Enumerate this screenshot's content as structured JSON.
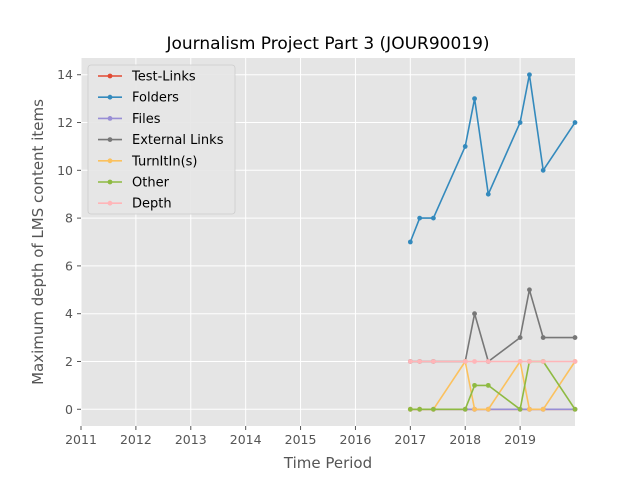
{
  "chart_data": {
    "type": "line",
    "title": "Journalism Project Part 3 (JOUR90019)",
    "xlabel": "Time Period",
    "ylabel": "Maximum depth of LMS content items",
    "xlim": [
      2011,
      2020
    ],
    "ylim": [
      -0.7,
      14.7
    ],
    "xticks": [
      2011,
      2012,
      2013,
      2014,
      2015,
      2016,
      2017,
      2018,
      2019
    ],
    "yticks": [
      0,
      2,
      4,
      6,
      8,
      10,
      12,
      14
    ],
    "grid": true,
    "legend_position": "upper-left",
    "x": [
      2017.0,
      2017.17,
      2017.42,
      2018.0,
      2018.17,
      2018.42,
      2019.0,
      2019.17,
      2019.42,
      2020.0
    ],
    "series": [
      {
        "name": "Test-Links",
        "color": "#E24A33",
        "values": [
          0,
          0,
          0,
          0,
          0,
          0,
          0,
          0,
          0,
          0
        ]
      },
      {
        "name": "Folders",
        "color": "#348ABD",
        "values": [
          7,
          8,
          8,
          11,
          13,
          9,
          12,
          14,
          10,
          12
        ]
      },
      {
        "name": "Files",
        "color": "#988ED5",
        "values": [
          0,
          0,
          0,
          0,
          0,
          0,
          0,
          0,
          0,
          0
        ]
      },
      {
        "name": "External Links",
        "color": "#777777",
        "values": [
          2,
          2,
          2,
          2,
          4,
          2,
          3,
          5,
          3,
          3
        ]
      },
      {
        "name": "TurnItIn(s)",
        "color": "#FBC15E",
        "values": [
          0,
          0,
          0,
          2,
          0,
          0,
          2,
          0,
          0,
          2
        ]
      },
      {
        "name": "Other",
        "color": "#8EBA42",
        "values": [
          0,
          0,
          0,
          0,
          1,
          1,
          0,
          2,
          2,
          0
        ]
      },
      {
        "name": "Depth",
        "color": "#FFB5B8",
        "values": [
          2,
          2,
          2,
          2,
          2,
          2,
          2,
          2,
          2,
          2
        ]
      }
    ]
  }
}
